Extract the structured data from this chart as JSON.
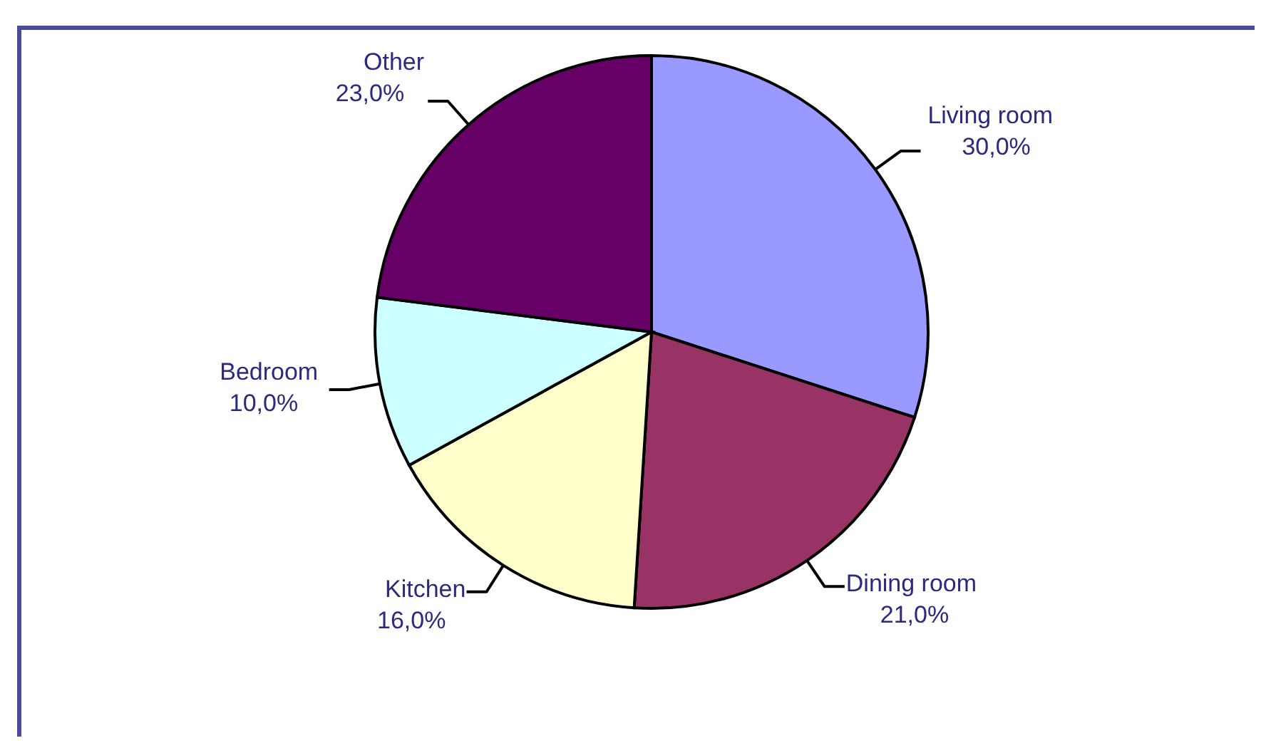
{
  "chart_data": {
    "type": "pie",
    "categories": [
      "Living room",
      "Dining room",
      "Kitchen",
      "Bedroom",
      "Other"
    ],
    "values": [
      30,
      21,
      16,
      10,
      23
    ],
    "colors": [
      "#9999ff",
      "#993366",
      "#ffffcc",
      "#ccffff",
      "#660066"
    ],
    "value_labels": [
      "30,0%",
      "21,0%",
      "16,0%",
      "10,0%",
      "23,0%"
    ],
    "legend": false
  }
}
